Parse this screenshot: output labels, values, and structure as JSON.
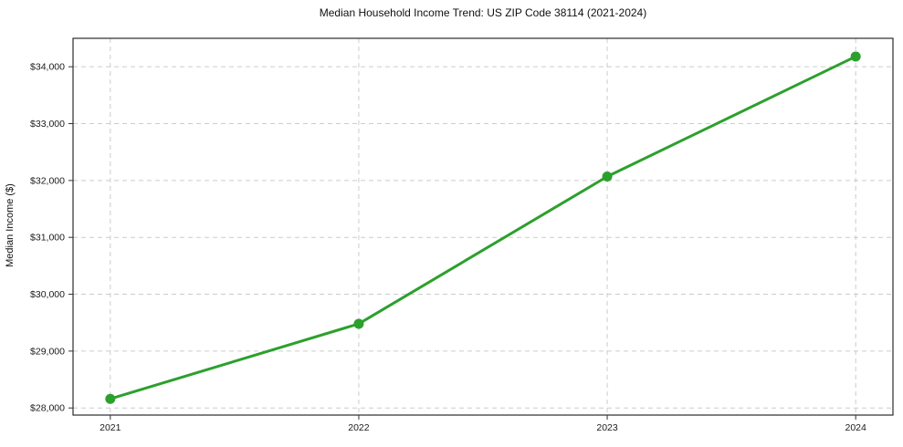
{
  "chart_data": {
    "type": "line",
    "title": "Median Household Income Trend: US ZIP Code 38114 (2021-2024)",
    "xlabel": "",
    "ylabel": "Median Income ($)",
    "x": [
      2021,
      2022,
      2023,
      2024
    ],
    "series": [
      {
        "name": "Median Household Income",
        "values": [
          28160,
          29480,
          32070,
          34180
        ]
      }
    ],
    "x_tick_labels": [
      "2021",
      "2022",
      "2023",
      "2024"
    ],
    "y_ticks": [
      28000,
      29000,
      30000,
      31000,
      32000,
      33000,
      34000
    ],
    "y_tick_labels": [
      "$28,000",
      "$29,000",
      "$30,000",
      "$31,000",
      "$32,000",
      "$33,000",
      "$34,000"
    ],
    "xlim": [
      2020.85,
      2024.15
    ],
    "ylim": [
      27875,
      34500
    ],
    "grid": "both, dashed",
    "legend_position": "none",
    "marker": "circle",
    "colors": {
      "line": "#2ca02c",
      "marker": "#2ca02c",
      "grid": "#cccccc",
      "axis_border": "#2b2b2b",
      "tick": "#333333",
      "text": "#1a1a1a",
      "background": "#ffffff"
    }
  }
}
